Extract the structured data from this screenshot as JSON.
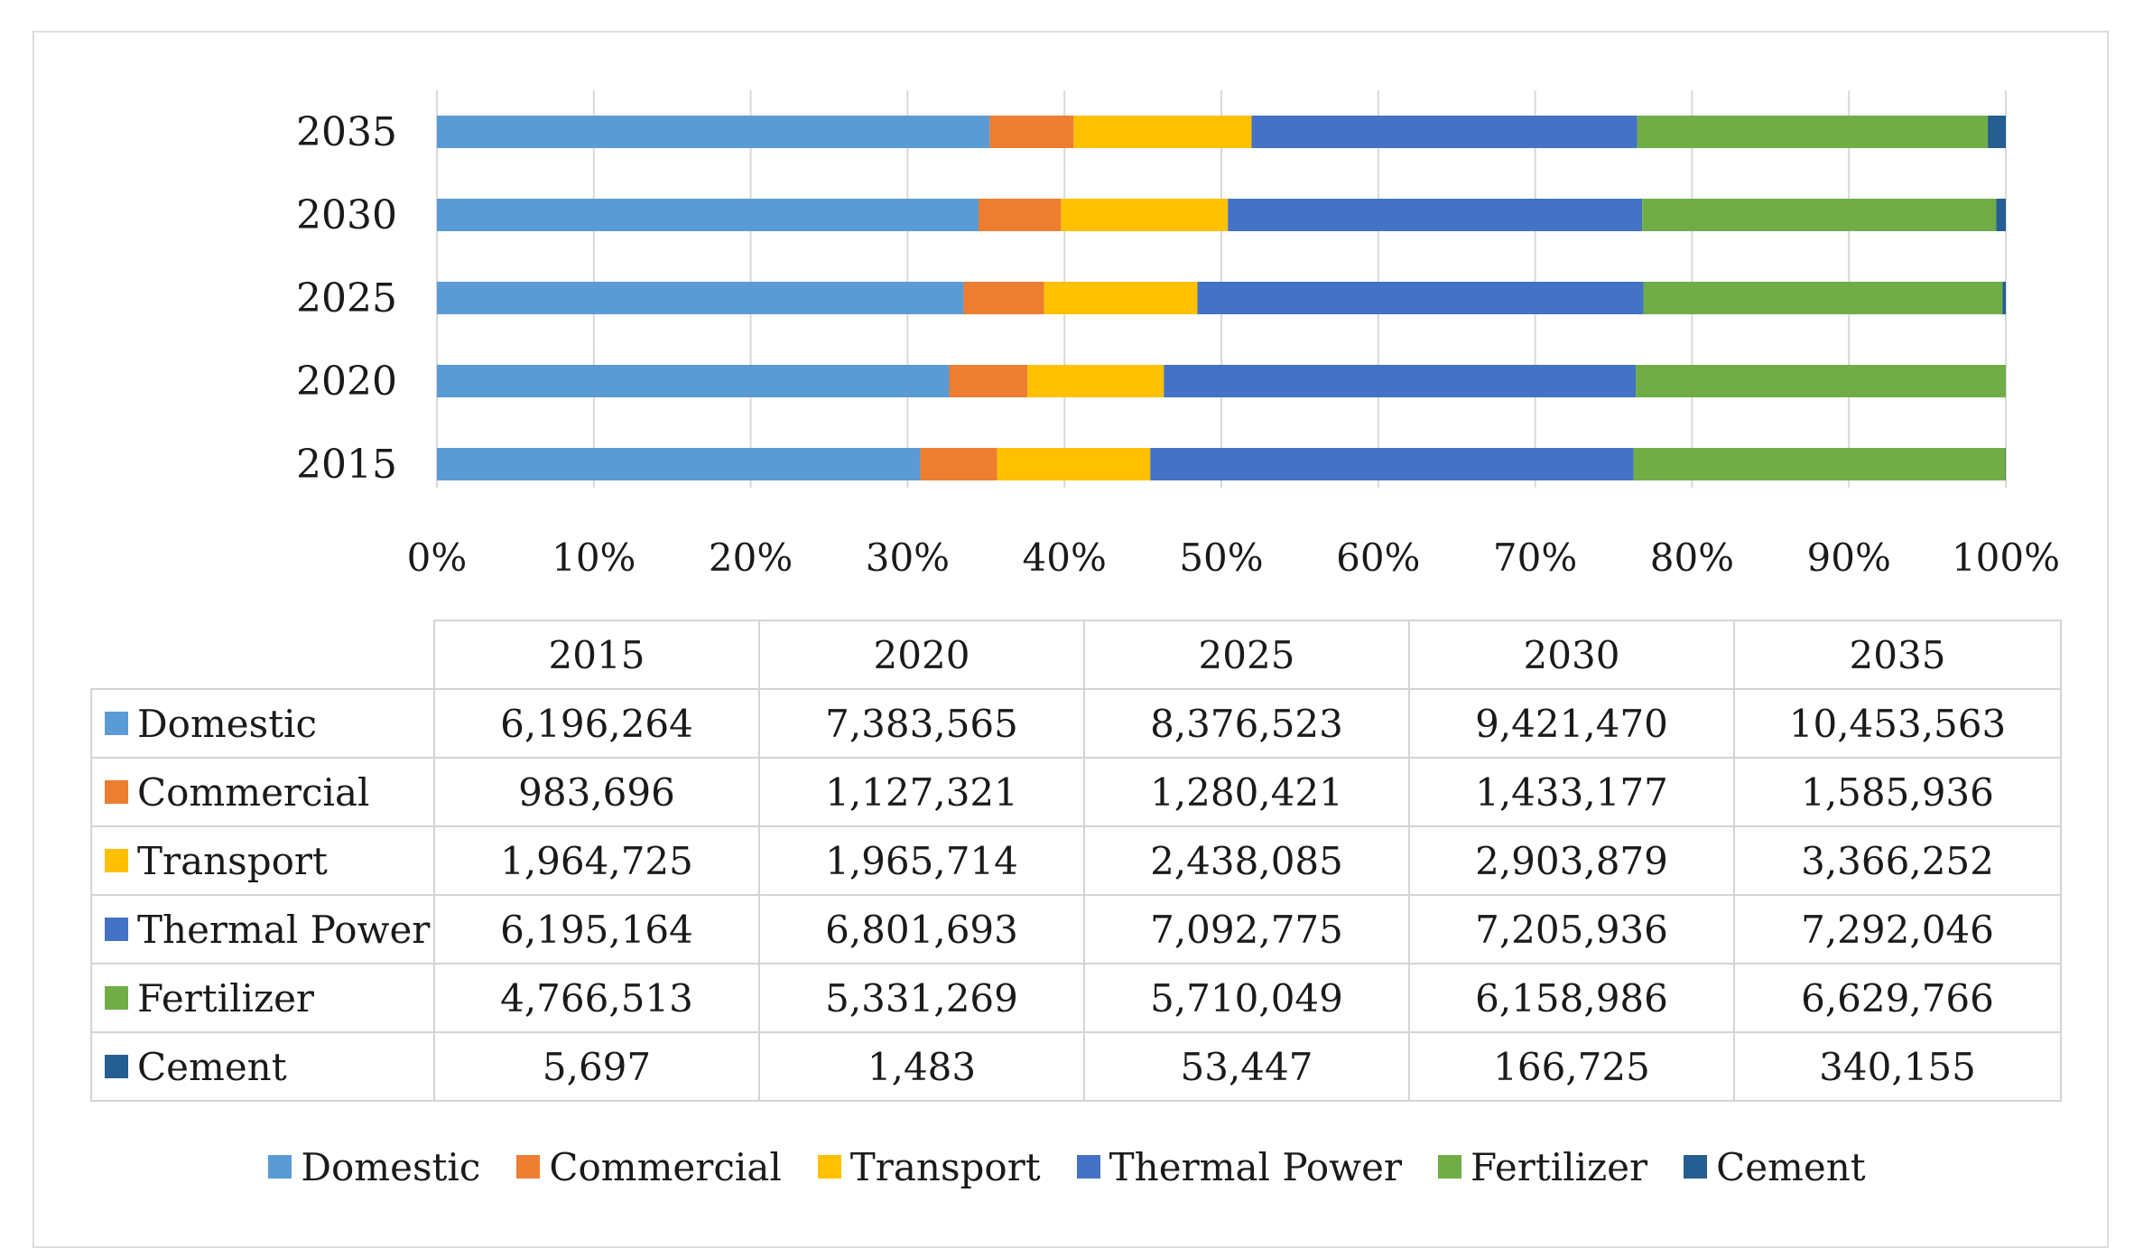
{
  "chart_data": {
    "type": "bar",
    "orientation": "horizontal",
    "stacking": "percent",
    "categories": [
      "2035",
      "2030",
      "2025",
      "2020",
      "2015"
    ],
    "x_ticks": [
      "0%",
      "10%",
      "20%",
      "30%",
      "40%",
      "50%",
      "60%",
      "70%",
      "80%",
      "90%",
      "100%"
    ],
    "xlim": [
      0,
      100
    ],
    "years": [
      "2015",
      "2020",
      "2025",
      "2030",
      "2035"
    ],
    "series": [
      {
        "name": "Domestic",
        "color": "#5b9bd5",
        "values": [
          6196264,
          7383565,
          8376523,
          9421470,
          10453563
        ],
        "labels": [
          "6,196,264",
          "7,383,565",
          "8,376,523",
          "9,421,470",
          "10,453,563"
        ]
      },
      {
        "name": "Commercial",
        "color": "#ed7d31",
        "values": [
          983696,
          1127321,
          1280421,
          1433177,
          1585936
        ],
        "labels": [
          "983,696",
          "1,127,321",
          "1,280,421",
          "1,433,177",
          "1,585,936"
        ]
      },
      {
        "name": "Transport",
        "color": "#ffc000",
        "values": [
          1964725,
          1965714,
          2438085,
          2903879,
          3366252
        ],
        "labels": [
          "1,964,725",
          "1,965,714",
          "2,438,085",
          "2,903,879",
          "3,366,252"
        ]
      },
      {
        "name": "Thermal Power",
        "color": "#4472c4",
        "values": [
          6195164,
          6801693,
          7092775,
          7205936,
          7292046
        ],
        "labels": [
          "6,195,164",
          "6,801,693",
          "7,092,775",
          "7,205,936",
          "7,292,046"
        ]
      },
      {
        "name": "Fertilizer",
        "color": "#70ad47",
        "values": [
          4766513,
          5331269,
          5710049,
          6158986,
          6629766
        ],
        "labels": [
          "4,766,513",
          "5,331,269",
          "5,710,049",
          "6,158,986",
          "6,629,766"
        ]
      },
      {
        "name": "Cement",
        "color": "#255e91",
        "values": [
          5697,
          1483,
          53447,
          166725,
          340155
        ],
        "labels": [
          "5,697",
          "1,483",
          "53,447",
          "166,725",
          "340,155"
        ]
      }
    ],
    "legend": "bottom",
    "grid": "vertical"
  }
}
